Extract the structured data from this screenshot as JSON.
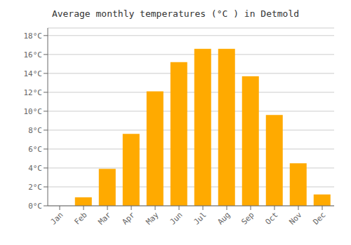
{
  "chart_data": {
    "type": "bar",
    "title": "Average monthly temperatures (°C ) in Detmold",
    "categories": [
      "Jan",
      "Feb",
      "Mar",
      "Apr",
      "May",
      "Jun",
      "Jul",
      "Aug",
      "Sep",
      "Oct",
      "Nov",
      "Dec"
    ],
    "values": [
      0.0,
      0.9,
      3.9,
      7.6,
      12.1,
      15.2,
      16.6,
      16.6,
      13.7,
      9.6,
      4.5,
      1.2
    ],
    "color": "#FFAA00",
    "ylim": [
      0,
      18.8
    ],
    "yticks": [
      {
        "value": 0,
        "label": "0°C"
      },
      {
        "value": 2,
        "label": "2°C"
      },
      {
        "value": 4,
        "label": "4°C"
      },
      {
        "value": 6,
        "label": "6°C"
      },
      {
        "value": 8,
        "label": "8°C"
      },
      {
        "value": 10,
        "label": "10°C"
      },
      {
        "value": 12,
        "label": "12°C"
      },
      {
        "value": 14,
        "label": "14°C"
      },
      {
        "value": 16,
        "label": "16°C"
      },
      {
        "value": 18,
        "label": "18°C"
      }
    ],
    "grid": true
  }
}
